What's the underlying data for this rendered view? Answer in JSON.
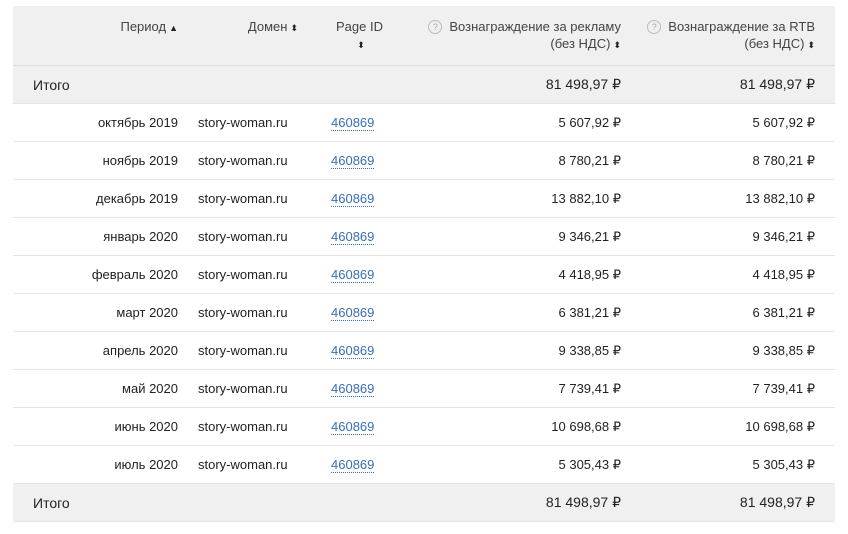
{
  "header": {
    "period": "Период",
    "domain": "Домен",
    "page_id": "Page ID",
    "ad_reward_line1": "Вознаграждение за рекламу",
    "ad_reward_line2": "(без НДС)",
    "rtb_reward_line1": "Вознаграждение за RTB",
    "rtb_reward_line2": "(без НДС)",
    "sort_asc": "▲",
    "sort_both": "⬍",
    "help": "?"
  },
  "total": {
    "label": "Итого",
    "ad": "81 498,97 ₽",
    "rtb": "81 498,97 ₽"
  },
  "rows": [
    {
      "period": "октябрь 2019",
      "domain": "story-woman.ru",
      "page_id": "460869",
      "ad": "5 607,92 ₽",
      "rtb": "5 607,92 ₽"
    },
    {
      "period": "ноябрь 2019",
      "domain": "story-woman.ru",
      "page_id": "460869",
      "ad": "8 780,21 ₽",
      "rtb": "8 780,21 ₽"
    },
    {
      "period": "декабрь 2019",
      "domain": "story-woman.ru",
      "page_id": "460869",
      "ad": "13 882,10 ₽",
      "rtb": "13 882,10 ₽"
    },
    {
      "period": "январь 2020",
      "domain": "story-woman.ru",
      "page_id": "460869",
      "ad": "9 346,21 ₽",
      "rtb": "9 346,21 ₽"
    },
    {
      "period": "февраль 2020",
      "domain": "story-woman.ru",
      "page_id": "460869",
      "ad": "4 418,95 ₽",
      "rtb": "4 418,95 ₽"
    },
    {
      "period": "март 2020",
      "domain": "story-woman.ru",
      "page_id": "460869",
      "ad": "6 381,21 ₽",
      "rtb": "6 381,21 ₽"
    },
    {
      "period": "апрель 2020",
      "domain": "story-woman.ru",
      "page_id": "460869",
      "ad": "9 338,85 ₽",
      "rtb": "9 338,85 ₽"
    },
    {
      "period": "май 2020",
      "domain": "story-woman.ru",
      "page_id": "460869",
      "ad": "7 739,41 ₽",
      "rtb": "7 739,41 ₽"
    },
    {
      "period": "июнь 2020",
      "domain": "story-woman.ru",
      "page_id": "460869",
      "ad": "10 698,68 ₽",
      "rtb": "10 698,68 ₽"
    },
    {
      "period": "июль 2020",
      "domain": "story-woman.ru",
      "page_id": "460869",
      "ad": "5 305,43 ₽",
      "rtb": "5 305,43 ₽"
    }
  ]
}
